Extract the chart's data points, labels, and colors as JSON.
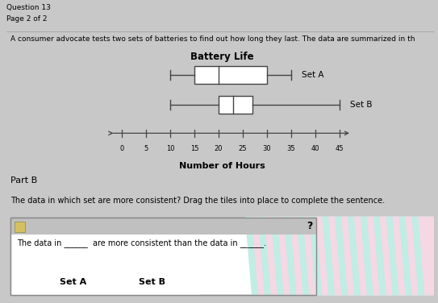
{
  "title_main": "Battery Life",
  "xlabel": "Number of Hours",
  "setA_label": "Set A",
  "setB_label": "Set B",
  "setA": {
    "whislo": 10,
    "q1": 15,
    "med": 20,
    "q3": 30,
    "whishi": 35
  },
  "setB": {
    "whislo": 10,
    "q1": 20,
    "med": 23,
    "q3": 27,
    "whishi": 45
  },
  "xticks": [
    0,
    5,
    10,
    15,
    20,
    25,
    30,
    35,
    40,
    45
  ],
  "xval_max": 45,
  "header_line1": "Question 13",
  "header_line2": "Page 2 of 2",
  "intro_text": "A consumer advocate tests two sets of batteries to find out how long they last. The data are summarized in th",
  "partB_label": "Part B",
  "question_text": "The data in which set are more consistent? Drag the tiles into place to complete the sentence.",
  "sentence_text": "The data in ______  are more consistent than the data in ______.",
  "tile1": "Set A",
  "tile2": "Set B",
  "toolbar_bg": "#c8c8c8",
  "content_bg": "#f0f0f0",
  "stripe_green": "#c0ede4",
  "stripe_pink": "#f5d8e4",
  "answer_header_bg": "#c0c0c0",
  "answer_body_bg": "#e8e8e8"
}
